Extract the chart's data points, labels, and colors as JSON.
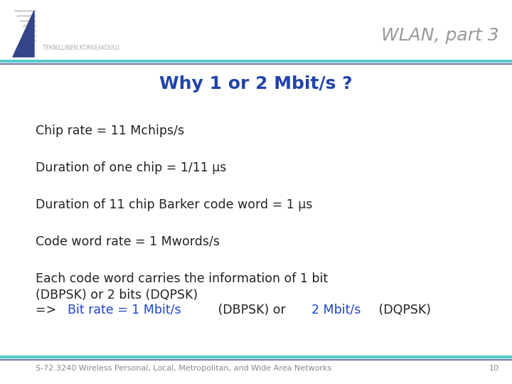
{
  "title": "WLAN, part 3",
  "title_color": "#999999",
  "slide_title": "Why 1 or 2 Mbit/s ?",
  "slide_title_color": "#2244AA",
  "background_color": "#FFFFFF",
  "top_bar_teal": "#55CCCC",
  "top_bar_purple": "#7777AA",
  "bottom_bar_teal": "#55CCCC",
  "bottom_bar_purple": "#7777AA",
  "footer_text": "S-72.3240 Wireless Personal, Local, Metropolitan, and Wide Area Networks",
  "footer_page": "10",
  "bullet_lines": [
    "Chip rate = 11 Mchips/s",
    "Duration of one chip = 1/11 μs",
    "Duration of 11 chip Barker code word = 1 μs",
    "Code word rate = 1 Mwords/s",
    "Each code word carries the information of 1 bit\n(DBPSK) or 2 bits (DQPSK)"
  ],
  "last_line_segments": [
    {
      "text": "=> ",
      "color": "#222222"
    },
    {
      "text": "Bit rate = 1 Mbit/s",
      "color": "#2244CC"
    },
    {
      "text": " (DBPSK) or ",
      "color": "#222222"
    },
    {
      "text": "2 Mbit/s",
      "color": "#2244CC"
    },
    {
      "text": " (DQPSK)",
      "color": "#222222"
    }
  ],
  "body_color": "#222222",
  "body_fontsize": 12.5,
  "title_fontsize": 18,
  "slide_title_fontsize": 18,
  "footer_fontsize": 8
}
